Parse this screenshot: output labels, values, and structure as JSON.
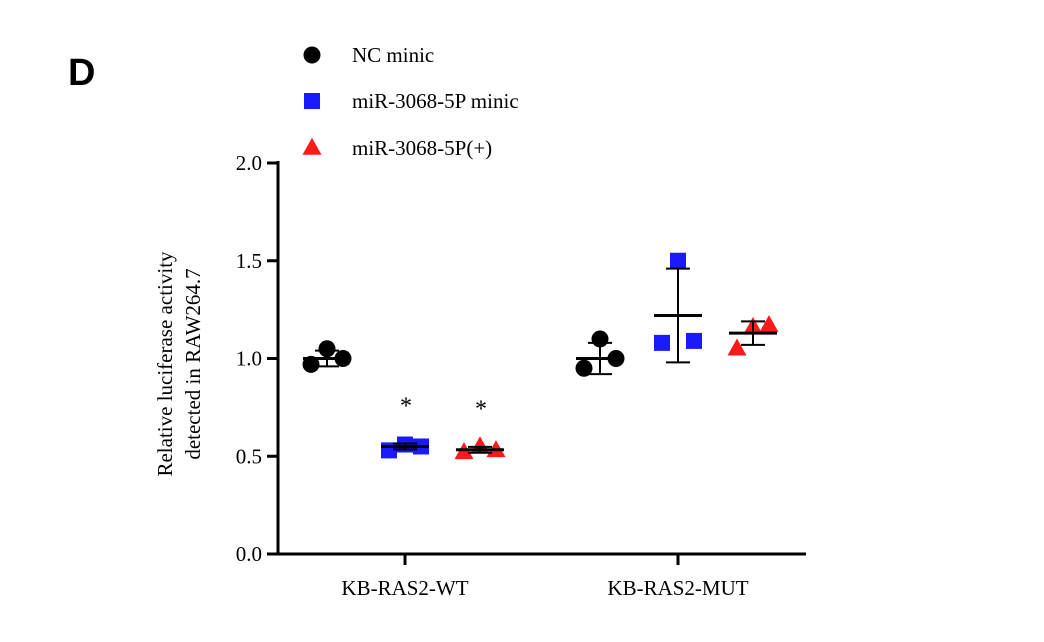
{
  "panel_label": "D",
  "colors": {
    "nc": "#000000",
    "mimic": "#1a1aff",
    "inhibitor": "#ff1a1a",
    "axis": "#000000"
  },
  "chart_data": {
    "type": "scatter",
    "subtype": "dot-plot-with-mean-and-sd",
    "ylabel_lines": [
      "Relative luciferase activity",
      "detected in RAW264.7"
    ],
    "xlabel": "",
    "ylim": [
      0,
      2.0
    ],
    "yticks": [
      0.0,
      0.5,
      1.0,
      1.5,
      2.0
    ],
    "ytick_labels": [
      "0.0",
      "0.5",
      "1.0",
      "1.5",
      "2.0"
    ],
    "categories": [
      "KB-RAS2-WT",
      "KB-RAS2-MUT"
    ],
    "legend_position": "top-left",
    "series": [
      {
        "name": "NC minic",
        "marker": "circle",
        "color": "#000000",
        "points": [
          [
            0.97,
            1.05,
            1.0
          ],
          [
            0.95,
            1.1,
            1.0
          ]
        ],
        "mean": [
          1.0,
          1.0
        ],
        "sd": [
          0.04,
          0.08
        ],
        "annotation": [
          "",
          ""
        ]
      },
      {
        "name": "miR-3068-5P minic",
        "marker": "square",
        "color": "#1a1aff",
        "points": [
          [
            0.53,
            0.56,
            0.55
          ],
          [
            1.08,
            1.5,
            1.09
          ]
        ],
        "mean": [
          0.55,
          1.22
        ],
        "sd": [
          0.015,
          0.24
        ],
        "annotation": [
          "*",
          ""
        ]
      },
      {
        "name": "miR-3068-5P(+)",
        "marker": "triangle",
        "color": "#ff1a1a",
        "points": [
          [
            0.52,
            0.55,
            0.53
          ],
          [
            1.05,
            1.16,
            1.17
          ]
        ],
        "mean": [
          0.533,
          1.13
        ],
        "sd": [
          0.015,
          0.06
        ],
        "annotation": [
          "*",
          ""
        ]
      }
    ]
  }
}
